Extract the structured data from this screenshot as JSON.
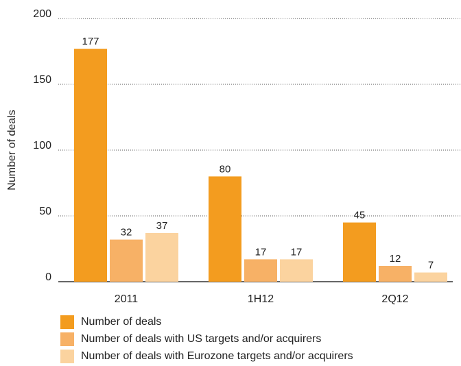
{
  "chart_data": {
    "type": "bar",
    "y_label": "Number of deals",
    "categories": [
      "2011",
      "1H12",
      "2Q12"
    ],
    "series": [
      {
        "name": "Number of deals",
        "color": "#f39c1f",
        "values": [
          177,
          80,
          45
        ]
      },
      {
        "name": "Number of deals with US targets and/or acquirers",
        "color": "#f7b166",
        "values": [
          32,
          17,
          12
        ]
      },
      {
        "name": "Number of deals with Eurozone targets and/or acquirers",
        "color": "#fbd39f",
        "values": [
          37,
          17,
          7
        ]
      }
    ],
    "ylim": [
      0,
      200
    ],
    "yticks": [
      0,
      50,
      100,
      150,
      200
    ],
    "grid": true
  }
}
